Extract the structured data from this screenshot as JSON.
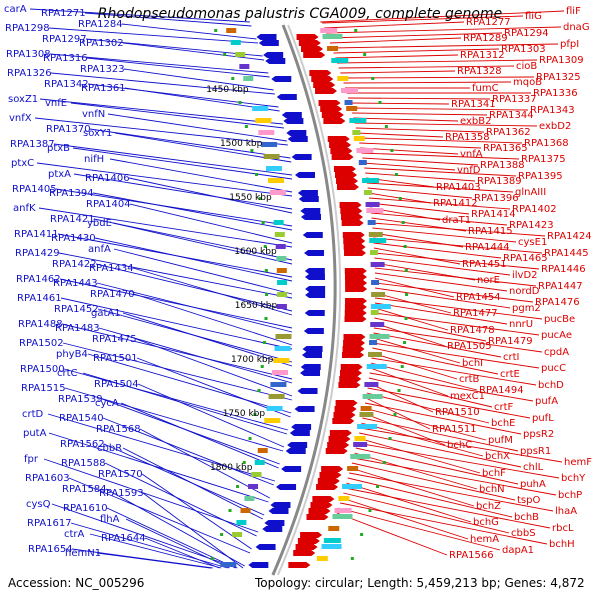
{
  "title": "Rhodopseudomonas palustris CGA009, complete genome",
  "footer": {
    "accession": "Accession: NC_005296",
    "summary": "Topology: circular; Length: 5,459,213 bp; Genes: 4,872"
  },
  "colors": {
    "left_genes": "#1010cc",
    "right_genes": "#dd0000",
    "backbone": "#999999",
    "tick": "#22aa22"
  },
  "chart_data": {
    "type": "genome-map",
    "title": "Rhodopseudomonas palustris CGA009, complete genome",
    "kbp_markers": [
      "1450 kbp",
      "1500 kbp",
      "1550 kbp",
      "1600 kbp",
      "1650 kbp",
      "1700 kbp",
      "1750 kbp",
      "1800 kbp"
    ],
    "left_labels": [
      "carA",
      "RPA1271",
      "RPA1284",
      "RPA1298",
      "RPA1297",
      "RPA1302",
      "RPA1308",
      "RPA1316",
      "RPA1323",
      "RPA1326",
      "RPA1342",
      "RPA1361",
      "soxZ1",
      "vnfE",
      "vnfN",
      "vnfX",
      "RPA1370",
      "soxY1",
      "RPA1387",
      "ptxB",
      "nifH",
      "ptxC",
      "ptxA",
      "RPA1406",
      "RPA1405",
      "RPA1394",
      "RPA1404",
      "anfK",
      "RPA1421",
      "ybdE",
      "RPA1411",
      "RPA1430",
      "anfA",
      "RPA1429",
      "RPA1422",
      "RPA1434",
      "RPA1462",
      "RPA1443",
      "RPA1470",
      "RPA1461",
      "RPA1452",
      "gatA1",
      "RPA1488",
      "RPA1483",
      "RPA1475",
      "RPA1502",
      "phyB4",
      "RPA1501",
      "RPA1500",
      "crtC",
      "RPA1504",
      "RPA1515",
      "RPA1539",
      "cycA",
      "crtD",
      "RPA1540",
      "RPA1568",
      "putA",
      "RPA1562",
      "cbbR",
      "fpr",
      "RPA1588",
      "RPA1570",
      "RPA1603",
      "RPA1584",
      "RPA1593",
      "cysQ",
      "RPA1610",
      "flhA",
      "RPA1617",
      "ctrA",
      "RPA1644",
      "RPA1654",
      "hemN1"
    ],
    "right_labels": [
      "fliF",
      "fliG",
      "RPA1277",
      "dnaG",
      "RPA1294",
      "RPA1289",
      "pfpI",
      "RPA1303",
      "RPA1312",
      "RPA1309",
      "cioB",
      "RPA1328",
      "RPA1325",
      "mqoB",
      "fumC",
      "RPA1336",
      "RPA1337",
      "RPA1341",
      "RPA1343",
      "RPA1344",
      "exbB2",
      "exbD2",
      "RPA1362",
      "RPA1358",
      "RPA1368",
      "RPA1365",
      "vnfA",
      "RPA1375",
      "RPA1388",
      "vnfD",
      "RPA1395",
      "RPA1389",
      "RPA1403",
      "glnAIII",
      "RPA1396",
      "RPA1412",
      "RPA1402",
      "RPA1414",
      "draT1",
      "RPA1423",
      "RPA1415",
      "RPA1424",
      "cysE1",
      "RPA1444",
      "RPA1445",
      "RPA1465",
      "RPA1451",
      "RPA1446",
      "ilvD2",
      "norE",
      "RPA1447",
      "nordD",
      "RPA1454",
      "RPA1476",
      "pgm2",
      "RPA1477",
      "pucBe",
      "nnrU",
      "RPA1478",
      "pucAe",
      "RPA1479",
      "RPA1505",
      "cpdA",
      "crtI",
      "bchI",
      "pucC",
      "crtE",
      "crtB",
      "bchD",
      "RPA1494",
      "mexC1",
      "pufA",
      "crtF",
      "RPA1510",
      "pufL",
      "bchE",
      "RPA1511",
      "ppsR2",
      "pufM",
      "bchC",
      "ppsR1",
      "bchX",
      "hemF",
      "chlL",
      "bchF",
      "bchY",
      "puhA",
      "bchN",
      "bchP",
      "tspO",
      "bchZ",
      "lhaA",
      "bchB",
      "bchG",
      "rbcL",
      "cbbS",
      "hemA",
      "bchH",
      "dapA1",
      "RPA1566"
    ]
  }
}
